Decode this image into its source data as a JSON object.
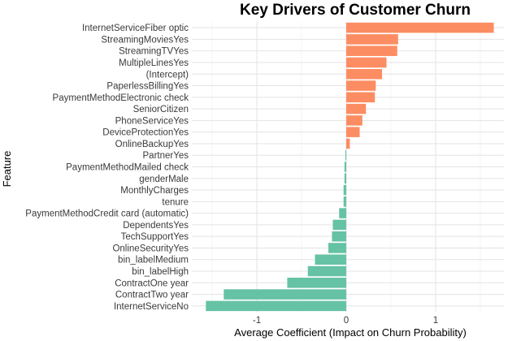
{
  "chart_data": {
    "type": "bar",
    "orientation": "horizontal",
    "title": "Key Drivers of Customer Churn",
    "xlabel": "Average Coefficient (Impact on Churn Probability)",
    "ylabel": "Feature",
    "xlim": [
      -1.6,
      1.65
    ],
    "xticks": [
      "-1",
      "0",
      "1"
    ],
    "xtick_values": [
      -1,
      0,
      1
    ],
    "grid": true,
    "legend": "none",
    "colors": {
      "positive": "#fc8d62",
      "negative": "#66c2a5"
    },
    "categories": [
      "InternetServiceFiber optic",
      "StreamingMoviesYes",
      "StreamingTVYes",
      "MultipleLinesYes",
      "(Intercept)",
      "PaperlessBillingYes",
      "PaymentMethodElectronic check",
      "SeniorCitizen",
      "PhoneServiceYes",
      "DeviceProtectionYes",
      "OnlineBackupYes",
      "PartnerYes",
      "PaymentMethodMailed check",
      "genderMale",
      "MonthlyCharges",
      "tenure",
      "PaymentMethodCredit card (automatic)",
      "DependentsYes",
      "TechSupportYes",
      "OnlineSecurityYes",
      "bin_labelMedium",
      "bin_labelHigh",
      "ContractOne year",
      "ContractTwo year",
      "InternetServiceNo"
    ],
    "values": [
      1.65,
      0.58,
      0.57,
      0.45,
      0.4,
      0.33,
      0.32,
      0.22,
      0.18,
      0.15,
      0.04,
      -0.01,
      -0.02,
      -0.02,
      -0.03,
      -0.03,
      -0.08,
      -0.15,
      -0.16,
      -0.2,
      -0.35,
      -0.43,
      -0.66,
      -1.37,
      -1.57
    ]
  }
}
